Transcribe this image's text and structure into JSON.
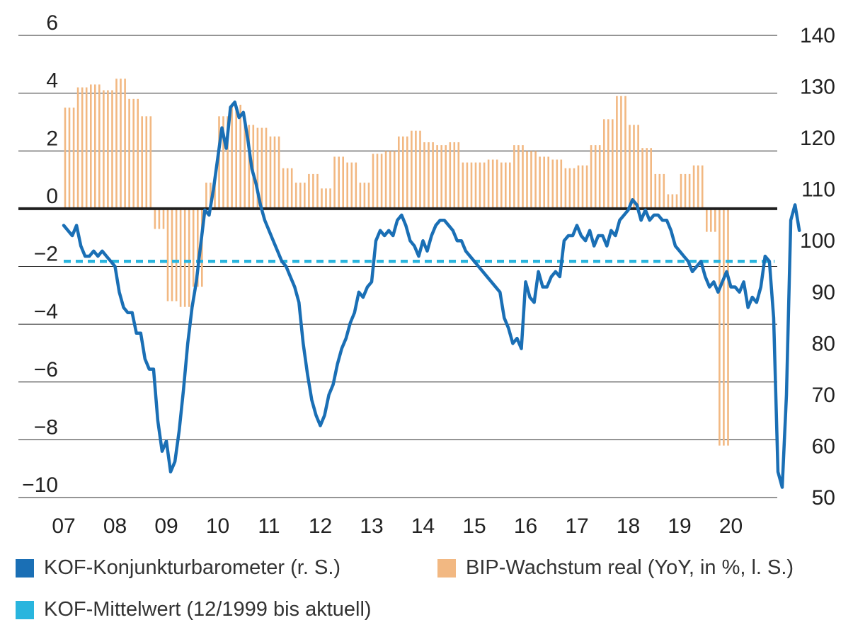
{
  "chart_data": {
    "type": "bar+line",
    "title": "",
    "x_ticks": [
      "07",
      "08",
      "09",
      "10",
      "11",
      "12",
      "13",
      "14",
      "15",
      "16",
      "17",
      "18",
      "19",
      "20"
    ],
    "left_axis": {
      "ticks": [
        "6",
        "4",
        "2",
        "0",
        "−2",
        "−4",
        "−6",
        "−8",
        "−10"
      ],
      "ylim": [
        -10,
        6
      ]
    },
    "right_axis": {
      "ticks": [
        "140",
        "130",
        "120",
        "110",
        "100",
        "90",
        "80",
        "70",
        "60",
        "50"
      ],
      "ylim": [
        50,
        140
      ]
    },
    "grid": true,
    "series": [
      {
        "name": "BIP-Wachstum real (YoY, in %, l. S.)",
        "type": "bar",
        "axis": "left",
        "color": "#f2b882",
        "x_start": 2007.0,
        "step_months": 1,
        "values": [
          3.5,
          3.5,
          3.5,
          4.2,
          4.2,
          4.2,
          4.3,
          4.3,
          4.3,
          4.1,
          4.1,
          4.1,
          4.5,
          4.5,
          4.5,
          3.8,
          3.8,
          3.8,
          3.2,
          3.2,
          3.2,
          -0.7,
          -0.7,
          -0.7,
          -3.2,
          -3.2,
          -3.2,
          -3.4,
          -3.4,
          -3.4,
          -2.7,
          -2.7,
          -2.7,
          0.9,
          0.9,
          0.9,
          3.2,
          3.2,
          3.2,
          3.6,
          3.6,
          3.6,
          2.9,
          2.9,
          2.9,
          2.8,
          2.8,
          2.8,
          2.5,
          2.5,
          2.5,
          1.4,
          1.4,
          1.4,
          0.9,
          0.9,
          0.9,
          1.2,
          1.2,
          1.2,
          0.7,
          0.7,
          0.7,
          1.8,
          1.8,
          1.8,
          1.6,
          1.6,
          1.6,
          0.9,
          0.9,
          0.9,
          1.9,
          1.9,
          1.9,
          2.0,
          2.0,
          2.0,
          2.5,
          2.5,
          2.5,
          2.7,
          2.7,
          2.7,
          2.3,
          2.3,
          2.3,
          2.2,
          2.2,
          2.2,
          2.3,
          2.3,
          2.3,
          1.6,
          1.6,
          1.6,
          1.6,
          1.6,
          1.6,
          1.7,
          1.7,
          1.7,
          1.6,
          1.6,
          1.6,
          2.2,
          2.2,
          2.2,
          2.0,
          2.0,
          2.0,
          1.8,
          1.8,
          1.8,
          1.7,
          1.7,
          1.7,
          1.4,
          1.4,
          1.4,
          1.5,
          1.5,
          1.5,
          2.2,
          2.2,
          2.2,
          3.1,
          3.1,
          3.1,
          3.9,
          3.9,
          3.9,
          2.9,
          2.9,
          2.9,
          2.1,
          2.1,
          2.1,
          1.2,
          1.2,
          1.2,
          0.5,
          0.5,
          0.5,
          1.2,
          1.2,
          1.2,
          1.5,
          1.5,
          1.5,
          -0.8,
          -0.8,
          -0.8,
          -8.2,
          -8.2,
          -8.2
        ]
      },
      {
        "name": "KOF-Konjunkturbarometer (r. S.)",
        "type": "line",
        "axis": "right",
        "color": "#1a6fb5",
        "x_start": 2007.0,
        "step_months": 1,
        "values": [
          103,
          102,
          101,
          103,
          99,
          97,
          97,
          98,
          97,
          98,
          97,
          96,
          95,
          90,
          87,
          86,
          86,
          82,
          82,
          77,
          75,
          75,
          65,
          59,
          61,
          55,
          57,
          63,
          71,
          80,
          87,
          92,
          99,
          106,
          105,
          110,
          116,
          122,
          118,
          126,
          127,
          124,
          125,
          120,
          114,
          111,
          107,
          104,
          102,
          100,
          98,
          96,
          95,
          93,
          91,
          88,
          80,
          74,
          69,
          66,
          64,
          66,
          70,
          72,
          76,
          79,
          81,
          84,
          86,
          90,
          89,
          91,
          92,
          100,
          102,
          101,
          102,
          101,
          104,
          105,
          103,
          100,
          99,
          97,
          100,
          98,
          101,
          103,
          104,
          104,
          103,
          102,
          100,
          100,
          98,
          97,
          96,
          95,
          94,
          93,
          92,
          91,
          90,
          85,
          83,
          80,
          81,
          79,
          92,
          89,
          88,
          94,
          91,
          91,
          93,
          94,
          93,
          100,
          101,
          101,
          103,
          101,
          100,
          102,
          99,
          101,
          101,
          99,
          102,
          101,
          104,
          105,
          106,
          108,
          107,
          104,
          106,
          104,
          105,
          105,
          104,
          104,
          102,
          99,
          98,
          97,
          96,
          94,
          95,
          96,
          93,
          91,
          92,
          90,
          92,
          94,
          91,
          91,
          90,
          92,
          87,
          89,
          88,
          91,
          97,
          96,
          85,
          55,
          52,
          70,
          104,
          107,
          102
        ]
      },
      {
        "name": "KOF-Mittelwert (12/1999 bis aktuell)",
        "type": "line",
        "style": "dashed",
        "axis": "right",
        "color": "#29b5de",
        "values": [
          96,
          96
        ]
      }
    ],
    "legend": [
      {
        "label": "KOF-Konjunkturbarometer (r. S.)",
        "color": "#1a6fb5"
      },
      {
        "label": "BIP-Wachstum real (YoY, in %, l. S.)",
        "color": "#f2b882"
      },
      {
        "label": "KOF-Mittelwert (12/1999 bis aktuell)",
        "color": "#29b5de"
      }
    ],
    "legend_position": "bottom"
  }
}
